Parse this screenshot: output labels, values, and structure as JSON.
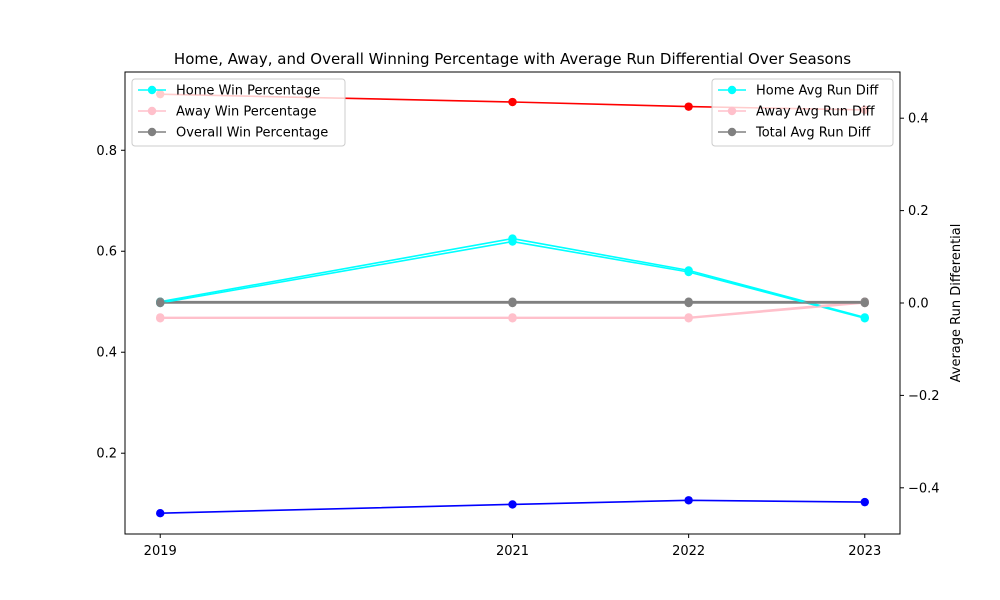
{
  "chart_data": {
    "type": "line",
    "title": "Home, Away, and Overall Winning Percentage with Average Run Differential Over Seasons",
    "xlabel": "",
    "x": [
      2019,
      2021,
      2022,
      2023
    ],
    "x_tick_labels": [
      "2019",
      "2021",
      "2022",
      "2023"
    ],
    "left_axis": {
      "label": "",
      "ylim": [
        0.04,
        0.955
      ],
      "ticks": [
        0.2,
        0.4,
        0.6,
        0.8
      ],
      "tick_labels": [
        "0.2",
        "0.4",
        "0.6",
        "0.8"
      ]
    },
    "right_axis": {
      "label": "Average Run Differential",
      "ylim": [
        -0.5,
        0.5
      ],
      "ticks": [
        -0.4,
        -0.2,
        0.0,
        0.2,
        0.4
      ],
      "tick_labels": [
        "−0.4",
        "−0.2",
        "0.0",
        "0.2",
        "0.4"
      ]
    },
    "grid": false,
    "series": [
      {
        "name": "Home Win Percentage",
        "axis": "left",
        "color": "#00ffff",
        "values": [
          0.5,
          0.625,
          0.562,
          0.469
        ]
      },
      {
        "name": "Away Win Percentage",
        "axis": "left",
        "color": "#ffc0cb",
        "values": [
          0.469,
          0.469,
          0.469,
          0.5
        ]
      },
      {
        "name": "Overall Win Percentage",
        "axis": "left",
        "color": "#808080",
        "values": [
          0.5,
          0.5,
          0.5,
          0.5
        ]
      },
      {
        "name": "Home Avg Run Diff",
        "axis": "right",
        "color": "#00ffff",
        "values": [
          0.0,
          0.133,
          0.067,
          -0.033
        ]
      },
      {
        "name": "Away Avg Run Diff",
        "axis": "right",
        "color": "#ffc0cb",
        "values": [
          -0.033,
          -0.033,
          -0.033,
          0.0
        ]
      },
      {
        "name": "Total Avg Run Diff",
        "axis": "right",
        "color": "#808080",
        "values": [
          0.0,
          0.0,
          0.0,
          0.0
        ]
      },
      {
        "name": "",
        "axis": "right",
        "color": "#ff0000",
        "values": [
          0.452,
          0.435,
          0.425,
          0.418
        ]
      },
      {
        "name": "",
        "axis": "right",
        "color": "#0000ff",
        "values": [
          -0.455,
          -0.436,
          -0.427,
          -0.431
        ]
      }
    ],
    "legends": [
      {
        "placement": "top-left",
        "entries": [
          "Home Win Percentage",
          "Away Win Percentage",
          "Overall Win Percentage"
        ]
      },
      {
        "placement": "top-right",
        "entries": [
          "Home Avg Run Diff",
          "Away Avg Run Diff",
          "Total Avg Run Diff"
        ]
      }
    ]
  }
}
